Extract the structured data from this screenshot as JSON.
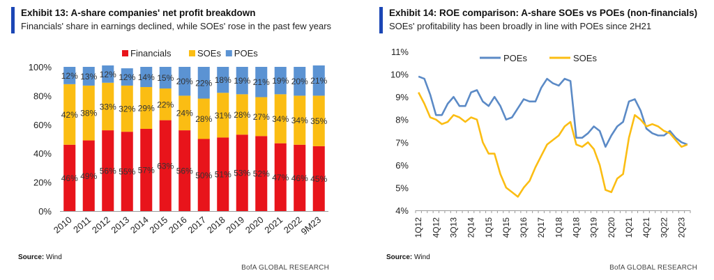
{
  "left": {
    "title": "Exhibit 13: A-share companies' net profit breakdown",
    "subtitle": "Financials' share in earnings declined, while SOEs' rose in the past few years",
    "source_label": "Source:",
    "source_value": "Wind",
    "brand": "BofA GLOBAL RESEARCH"
  },
  "right": {
    "title": "Exhibit 14: ROE comparison: A-share SOEs vs POEs (non-financials)",
    "subtitle": "SOEs' profitability has been broadly in line with POEs since 2H21",
    "source_label": "Source:",
    "source_value": "Wind",
    "brand": "BofA GLOBAL RESEARCH"
  },
  "chart_data": [
    {
      "type": "bar",
      "stacked": true,
      "categories": [
        "2010",
        "2011",
        "2012",
        "2013",
        "2014",
        "2015",
        "2016",
        "2017",
        "2018",
        "2019",
        "2020",
        "2021",
        "2022",
        "9M23"
      ],
      "series": [
        {
          "name": "Financials",
          "color": "#e8141b",
          "values": [
            46,
            49,
            56,
            55,
            57,
            63,
            56,
            50,
            51,
            53,
            52,
            47,
            46,
            45
          ]
        },
        {
          "name": "SOEs",
          "color": "#fbbd13",
          "values": [
            42,
            38,
            33,
            32,
            29,
            22,
            24,
            28,
            31,
            28,
            27,
            34,
            34,
            35
          ]
        },
        {
          "name": "POEs",
          "color": "#5b93d3",
          "values": [
            12,
            13,
            12,
            12,
            14,
            15,
            20,
            22,
            18,
            19,
            21,
            19,
            20,
            21
          ]
        }
      ],
      "value_format": "%",
      "ylim": [
        0,
        100
      ],
      "yticks": [
        "0%",
        "20%",
        "40%",
        "60%",
        "80%",
        "100%"
      ],
      "legend_position": "top-center",
      "grid": false
    },
    {
      "type": "line",
      "x_tick_labels": [
        "1Q12",
        "4Q12",
        "3Q13",
        "2Q14",
        "1Q15",
        "4Q15",
        "3Q16",
        "2Q17",
        "1Q18",
        "4Q18",
        "3Q19",
        "2Q20",
        "1Q21",
        "4Q21",
        "3Q22",
        "2Q23"
      ],
      "x_tick_every": 3,
      "series": [
        {
          "name": "POEs",
          "color": "#5b8ac6",
          "values": [
            9.9,
            9.8,
            9.1,
            8.2,
            8.2,
            8.7,
            9.0,
            8.6,
            8.6,
            9.2,
            9.3,
            8.8,
            8.6,
            9.0,
            8.6,
            8.0,
            8.1,
            8.5,
            8.9,
            8.8,
            8.8,
            9.4,
            9.8,
            9.6,
            9.5,
            9.8,
            9.7,
            7.2,
            7.2,
            7.4,
            7.7,
            7.5,
            6.8,
            7.3,
            7.7,
            7.9,
            8.8,
            8.9,
            8.4,
            7.6,
            7.4,
            7.3,
            7.3,
            7.5,
            7.2,
            7.0,
            6.9
          ]
        },
        {
          "name": "SOEs",
          "color": "#fbbd13",
          "values": [
            9.2,
            8.7,
            8.1,
            8.0,
            7.8,
            7.9,
            8.2,
            8.1,
            7.9,
            8.1,
            8.0,
            7.0,
            6.5,
            6.5,
            5.6,
            5.0,
            4.8,
            4.6,
            5.0,
            5.3,
            5.9,
            6.4,
            6.9,
            7.1,
            7.3,
            7.7,
            7.9,
            6.9,
            6.8,
            7.0,
            6.7,
            6.0,
            4.9,
            4.8,
            5.4,
            5.6,
            7.2,
            8.2,
            8.0,
            7.7,
            7.8,
            7.7,
            7.5,
            7.4,
            7.1,
            6.8,
            6.9
          ]
        }
      ],
      "ylim": [
        4,
        11
      ],
      "yticks": [
        "4%",
        "5%",
        "6%",
        "7%",
        "8%",
        "9%",
        "10%",
        "11%"
      ],
      "legend_position": "top-center",
      "grid": false
    }
  ]
}
